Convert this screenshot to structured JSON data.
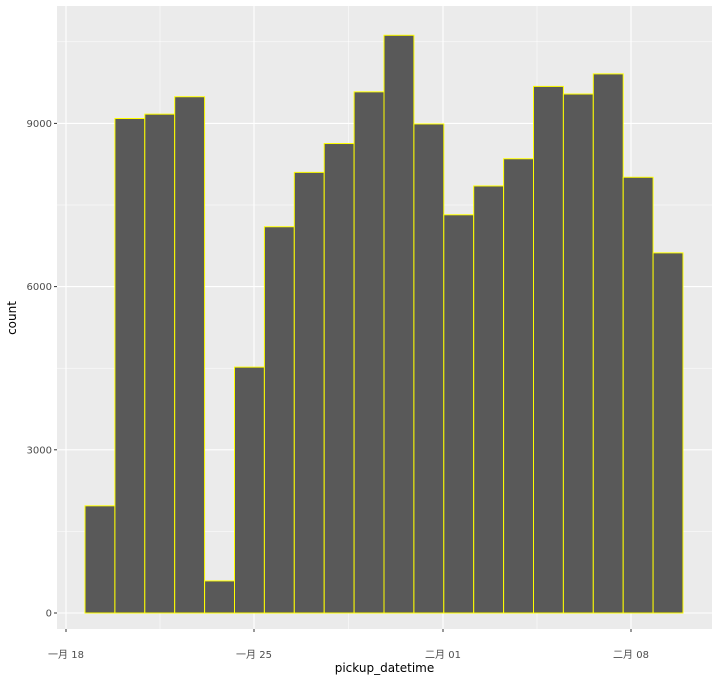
{
  "chart_data": {
    "type": "bar",
    "xlabel": "pickup_datetime",
    "ylabel": "count",
    "x_tick_labels": [
      "一月 18",
      "一月 25",
      "二月 01",
      "二月 08"
    ],
    "y_ticks": [
      0,
      3000,
      6000,
      9000
    ],
    "y_tick_labels": [
      "0",
      "3000",
      "6000",
      "9000"
    ],
    "ylim": [
      0,
      10700
    ],
    "values": [
      1970,
      9090,
      9170,
      9490,
      590,
      4520,
      7100,
      8100,
      8630,
      9580,
      10620,
      8990,
      7320,
      7850,
      8350,
      9680,
      9540,
      9910,
      8010,
      6620
    ],
    "grid": true,
    "bar_fill": "#595959",
    "bar_outline": "#ffff00",
    "panel_background": "#ebebeb",
    "gridline_color": "#ffffff"
  }
}
